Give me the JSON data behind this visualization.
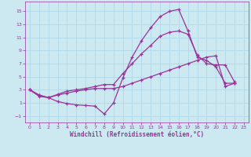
{
  "xlabel": "Windchill (Refroidissement éolien,°C)",
  "background_color": "#cce8f0",
  "grid_color": "#b0d8e8",
  "line_color": "#993399",
  "xlim": [
    -0.5,
    23.5
  ],
  "ylim": [
    -2,
    16.5
  ],
  "xticks": [
    0,
    1,
    2,
    3,
    4,
    5,
    6,
    7,
    8,
    9,
    10,
    11,
    12,
    13,
    14,
    15,
    16,
    17,
    18,
    19,
    20,
    21,
    22,
    23
  ],
  "yticks": [
    -1,
    1,
    3,
    5,
    7,
    9,
    11,
    13,
    15
  ],
  "series1_x": [
    0,
    1,
    2,
    3,
    4,
    5,
    6,
    7,
    8,
    9,
    10,
    11,
    12,
    13,
    14,
    15,
    16,
    17,
    18,
    19,
    20,
    21,
    22
  ],
  "series1_y": [
    3.0,
    2.2,
    1.8,
    1.2,
    0.9,
    0.7,
    0.6,
    0.5,
    -0.7,
    1.0,
    4.8,
    8.0,
    10.5,
    12.5,
    14.2,
    15.0,
    15.3,
    12.0,
    8.0,
    7.5,
    6.5,
    4.0,
    4.0
  ],
  "series2_x": [
    0,
    1,
    2,
    3,
    4,
    5,
    6,
    7,
    8,
    9,
    10,
    11,
    12,
    13,
    14,
    15,
    16,
    17,
    18,
    19,
    20,
    21,
    22
  ],
  "series2_y": [
    3.0,
    2.2,
    1.8,
    2.3,
    2.8,
    3.0,
    3.2,
    3.5,
    3.8,
    3.8,
    5.5,
    7.0,
    8.5,
    9.8,
    11.2,
    11.8,
    12.0,
    11.5,
    8.3,
    7.0,
    6.8,
    6.8,
    4.2
  ],
  "series3_x": [
    0,
    1,
    2,
    3,
    4,
    5,
    6,
    7,
    8,
    9,
    10,
    11,
    12,
    13,
    14,
    15,
    16,
    17,
    18,
    19,
    20,
    21,
    22
  ],
  "series3_y": [
    3.0,
    2.0,
    1.8,
    2.2,
    2.5,
    2.8,
    3.0,
    3.2,
    3.2,
    3.2,
    3.5,
    4.0,
    4.5,
    5.0,
    5.5,
    6.0,
    6.5,
    7.0,
    7.5,
    8.0,
    8.2,
    3.5,
    4.0
  ]
}
